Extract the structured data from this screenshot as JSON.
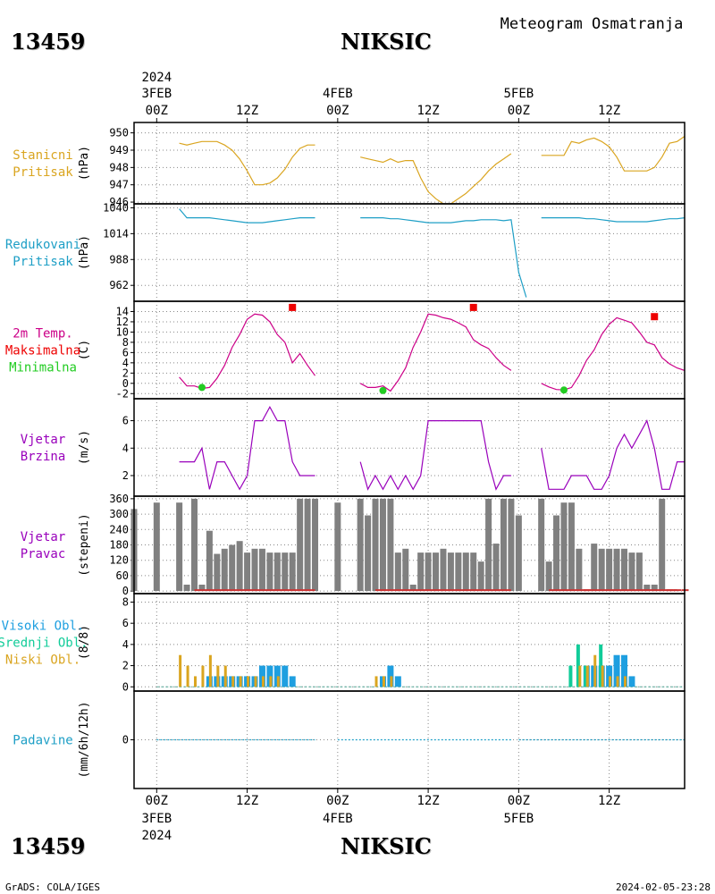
{
  "header": {
    "station_id": "13459",
    "station_name": "NIKSIC",
    "chart_title": "Meteogram Osmatranja",
    "year": "2024",
    "footer_left": "GrADS: COLA/IGES",
    "footer_right": "2024-02-05-23:28"
  },
  "time_axis": {
    "top_labels": [
      {
        "hour": 0,
        "day": "3FEB",
        "year": "2024",
        "label": "00Z"
      },
      {
        "hour": 12,
        "label": "12Z"
      },
      {
        "hour": 24,
        "day": "4FEB",
        "label": "00Z"
      },
      {
        "hour": 36,
        "label": "12Z"
      },
      {
        "hour": 48,
        "day": "5FEB",
        "label": "00Z"
      },
      {
        "hour": 60,
        "label": "12Z"
      }
    ],
    "range_hours": [
      -3,
      70
    ]
  },
  "colors": {
    "station_pressure": "#daa520",
    "reduced_pressure": "#1e9fc6",
    "temperature": "#cc0088",
    "tmax": "#ee0000",
    "tmin": "#22cc22",
    "wind": "#9900bb",
    "direction_bar": "#808080",
    "direction_calm": "#cc3333",
    "high_cloud": "#1e9fe0",
    "mid_cloud": "#11cc99",
    "low_cloud": "#daa520",
    "precip": "#1e9fc6"
  },
  "chart_data": [
    {
      "type": "line",
      "name": "station_pressure",
      "labels": [
        "Stanicni",
        "Pritisak"
      ],
      "ylabel": "(hPa)",
      "yticks": [
        946,
        947,
        948,
        949,
        950
      ],
      "ylim": [
        945.9,
        950.6
      ],
      "segments": [
        {
          "x": [
            3,
            4,
            5,
            6,
            7,
            8,
            9,
            10,
            11,
            12,
            13,
            14,
            15,
            16,
            17,
            18,
            19,
            20,
            21
          ],
          "y": [
            949.4,
            949.3,
            949.4,
            949.5,
            949.5,
            949.5,
            949.3,
            949.0,
            948.5,
            947.8,
            947.0,
            947.0,
            947.1,
            947.4,
            947.9,
            948.6,
            949.1,
            949.3,
            949.3
          ]
        },
        {
          "x": [
            27,
            28,
            29,
            30,
            31,
            32,
            33,
            34,
            35,
            36,
            37,
            38,
            39,
            40,
            41,
            42,
            43,
            44,
            45,
            46,
            47
          ],
          "y": [
            948.6,
            948.5,
            948.4,
            948.3,
            948.5,
            948.3,
            948.4,
            948.4,
            947.4,
            946.6,
            946.2,
            945.9,
            945.9,
            946.2,
            946.5,
            946.9,
            947.3,
            947.8,
            948.2,
            948.5,
            948.8
          ]
        },
        {
          "x": [
            51,
            52,
            53,
            54,
            55,
            56,
            57,
            58,
            59,
            60,
            61,
            62,
            63,
            64,
            65,
            66,
            67,
            68,
            69,
            70
          ],
          "y": [
            948.7,
            948.7,
            948.7,
            948.7,
            949.5,
            949.4,
            949.6,
            949.7,
            949.5,
            949.2,
            948.6,
            947.8,
            947.8,
            947.8,
            947.8,
            948.0,
            948.6,
            949.4,
            949.5,
            949.8
          ]
        }
      ]
    },
    {
      "type": "line",
      "name": "reduced_pressure",
      "labels": [
        "Redukovani",
        "Pritisak"
      ],
      "ylabel": "(hPa)",
      "yticks": [
        962,
        988,
        1014,
        1040
      ],
      "ylim": [
        946,
        1044
      ],
      "segments": [
        {
          "x": [
            3,
            4,
            5,
            6,
            7,
            8,
            9,
            10,
            11,
            12,
            13,
            14,
            15,
            16,
            17,
            18,
            19,
            20,
            21
          ],
          "y": [
            1039,
            1030,
            1030,
            1030,
            1030,
            1029,
            1028,
            1027,
            1026,
            1025,
            1025,
            1025,
            1026,
            1027,
            1028,
            1029,
            1030,
            1030,
            1030
          ]
        },
        {
          "x": [
            27,
            28,
            29,
            30,
            31,
            32,
            33,
            34,
            35,
            36,
            37,
            38,
            39,
            40,
            41,
            42,
            43,
            44,
            45,
            46,
            47,
            48,
            49
          ],
          "y": [
            1030,
            1030,
            1030,
            1030,
            1029,
            1029,
            1028,
            1027,
            1026,
            1025,
            1025,
            1025,
            1025,
            1026,
            1027,
            1027,
            1028,
            1028,
            1028,
            1027,
            1028,
            975,
            950
          ]
        },
        {
          "x": [
            51,
            52,
            53,
            54,
            55,
            56,
            57,
            58,
            59,
            60,
            61,
            62,
            63,
            64,
            65,
            66,
            67,
            68,
            69,
            70
          ],
          "y": [
            1030,
            1030,
            1030,
            1030,
            1030,
            1030,
            1029,
            1029,
            1028,
            1027,
            1026,
            1026,
            1026,
            1026,
            1026,
            1027,
            1028,
            1029,
            1029,
            1030
          ]
        }
      ]
    },
    {
      "type": "line",
      "name": "temperature",
      "labels": [
        "2m Temp.",
        "Maksimalna",
        "Minimalna"
      ],
      "ylabel": "(C)",
      "yticks": [
        -2,
        0,
        2,
        4,
        6,
        8,
        10,
        12,
        14
      ],
      "ylim": [
        -3,
        16
      ],
      "segments": [
        {
          "x": [
            3,
            4,
            5,
            6,
            7,
            8,
            9,
            10,
            11,
            12,
            13,
            14,
            15,
            16,
            17,
            18,
            19,
            20,
            21
          ],
          "y": [
            1.2,
            -0.5,
            -0.5,
            -1.0,
            -0.8,
            1.0,
            3.5,
            7.0,
            9.5,
            12.5,
            13.5,
            13.3,
            12.0,
            9.5,
            8.0,
            4.0,
            5.8,
            3.5,
            1.5
          ]
        },
        {
          "x": [
            27,
            28,
            29,
            30,
            31,
            32,
            33,
            34,
            35,
            36,
            37,
            38,
            39,
            40,
            41,
            42,
            43,
            44,
            45,
            46,
            47
          ],
          "y": [
            0.0,
            -0.8,
            -0.8,
            -0.5,
            -1.5,
            0.5,
            3.0,
            7.0,
            10.0,
            13.5,
            13.3,
            12.8,
            12.5,
            11.8,
            11.0,
            8.5,
            7.5,
            6.8,
            5.0,
            3.5,
            2.5
          ]
        },
        {
          "x": [
            51,
            52,
            53,
            54,
            55,
            56,
            57,
            58,
            59,
            60,
            61,
            62,
            63,
            64,
            65,
            66,
            67,
            68,
            69,
            70
          ],
          "y": [
            0.0,
            -0.7,
            -1.2,
            -1.3,
            -0.8,
            1.5,
            4.5,
            6.5,
            9.5,
            11.5,
            12.8,
            12.3,
            11.8,
            10.0,
            8.0,
            7.5,
            5.0,
            3.8,
            3.0,
            2.5
          ]
        }
      ],
      "tmax_points": [
        {
          "x": 18,
          "y": 14.8
        },
        {
          "x": 42,
          "y": 14.8
        },
        {
          "x": 66,
          "y": 13.0
        }
      ],
      "tmin_points": [
        {
          "x": 6,
          "y": -0.8
        },
        {
          "x": 30,
          "y": -1.4
        },
        {
          "x": 54,
          "y": -1.3
        }
      ]
    },
    {
      "type": "line",
      "name": "wind_speed",
      "labels": [
        "Vjetar",
        "Brzina"
      ],
      "ylabel": "(m/s)",
      "yticks": [
        2,
        4,
        6
      ],
      "ylim": [
        0.5,
        7.6
      ],
      "segments": [
        {
          "x": [
            3,
            4,
            5,
            6,
            7,
            8,
            9,
            10,
            11,
            12,
            13,
            14,
            15,
            16,
            17,
            18,
            19,
            20,
            21
          ],
          "y": [
            3,
            3,
            3,
            4,
            1,
            3,
            3,
            2,
            1,
            2,
            6,
            6,
            7,
            6,
            6,
            3,
            2,
            2,
            2
          ]
        },
        {
          "x": [
            27,
            28,
            29,
            30,
            31,
            32,
            33,
            34,
            35,
            36,
            37,
            38,
            39,
            40,
            41,
            42,
            43,
            44,
            45,
            46,
            47
          ],
          "y": [
            3,
            1,
            2,
            1,
            2,
            1,
            2,
            1,
            2,
            6,
            6,
            6,
            6,
            6,
            6,
            6,
            6,
            3,
            1,
            2,
            2
          ]
        },
        {
          "x": [
            51,
            52,
            53,
            54,
            55,
            56,
            57,
            58,
            59,
            60,
            61,
            62,
            63,
            64,
            65,
            66,
            67,
            68,
            69,
            70
          ],
          "y": [
            4,
            1,
            1,
            1,
            2,
            2,
            2,
            1,
            1,
            2,
            4,
            5,
            4,
            5,
            6,
            4,
            1,
            1,
            3,
            3
          ]
        }
      ]
    },
    {
      "type": "bar",
      "name": "wind_direction",
      "labels": [
        "Vjetar",
        "Pravac"
      ],
      "ylabel": "(stepeni)",
      "yticks": [
        0,
        60,
        120,
        180,
        240,
        300,
        360
      ],
      "ylim": [
        -10,
        370
      ],
      "x": [
        -3,
        0,
        3,
        4,
        5,
        6,
        7,
        8,
        9,
        10,
        11,
        12,
        13,
        14,
        15,
        16,
        17,
        18,
        19,
        20,
        21,
        24,
        27,
        28,
        29,
        30,
        31,
        32,
        33,
        34,
        35,
        36,
        37,
        38,
        39,
        40,
        41,
        42,
        43,
        44,
        45,
        46,
        47,
        48,
        51,
        52,
        53,
        54,
        55,
        56,
        57,
        58,
        59,
        60,
        61,
        62,
        63,
        64,
        65,
        66,
        67,
        68,
        69,
        70
      ],
      "values": [
        320,
        345,
        345,
        25,
        360,
        25,
        235,
        145,
        165,
        180,
        195,
        150,
        165,
        165,
        150,
        150,
        150,
        150,
        360,
        360,
        360,
        345,
        360,
        295,
        360,
        360,
        360,
        150,
        165,
        25,
        150,
        150,
        150,
        165,
        150,
        150,
        150,
        150,
        115,
        360,
        185,
        360,
        360,
        295,
        360,
        115,
        295,
        345,
        345,
        165,
        0,
        185,
        165,
        165,
        165,
        165,
        150,
        150,
        25,
        25,
        360,
        0,
        0,
        0
      ]
    },
    {
      "type": "bar",
      "name": "cloud_cover",
      "labels": [
        "Visoki Obl.",
        "Srednji Obl.",
        "Niski Obl."
      ],
      "ylabel": "(8/8)",
      "yticks": [
        0,
        2,
        4,
        6,
        8
      ],
      "ylim": [
        -0.4,
        8.8
      ],
      "series": [
        {
          "name": "Visoki Obl.",
          "x": [
            7,
            8,
            9,
            10,
            11,
            12,
            13,
            14,
            15,
            16,
            17,
            18,
            30,
            31,
            32,
            57,
            58,
            59,
            60,
            61,
            62,
            63
          ],
          "values": [
            1,
            1,
            1,
            1,
            1,
            1,
            1,
            2,
            2,
            2,
            2,
            1,
            1,
            2,
            1,
            2,
            2,
            2,
            2,
            3,
            3,
            1
          ]
        },
        {
          "name": "Srednji Obl.",
          "x": [
            55,
            56,
            57,
            59
          ],
          "values": [
            2,
            4,
            2,
            4
          ]
        },
        {
          "name": "Niski Obl.",
          "x": [
            3,
            4,
            5,
            6,
            7,
            8,
            9,
            10,
            11,
            12,
            13,
            14,
            15,
            16,
            29,
            30,
            31,
            56,
            57,
            58,
            59,
            60,
            61,
            62
          ],
          "values": [
            3,
            2,
            1,
            2,
            3,
            2,
            2,
            1,
            1,
            1,
            1,
            1,
            1,
            1,
            1,
            1,
            1,
            2,
            2,
            3,
            2,
            1,
            1,
            1
          ]
        }
      ]
    },
    {
      "type": "line",
      "name": "precipitation",
      "labels": [
        "Padavine"
      ],
      "ylabel": "(mm/6h/12h)",
      "yticks": [
        0
      ],
      "ylim": [
        -2.5,
        2.5
      ],
      "segments": [
        {
          "x": [
            0,
            3,
            21
          ],
          "y": [
            0,
            0,
            0
          ]
        },
        {
          "x": [
            24,
            27,
            47
          ],
          "y": [
            0,
            0,
            0
          ]
        },
        {
          "x": [
            48,
            51,
            70
          ],
          "y": [
            0,
            0,
            0
          ]
        }
      ]
    }
  ]
}
